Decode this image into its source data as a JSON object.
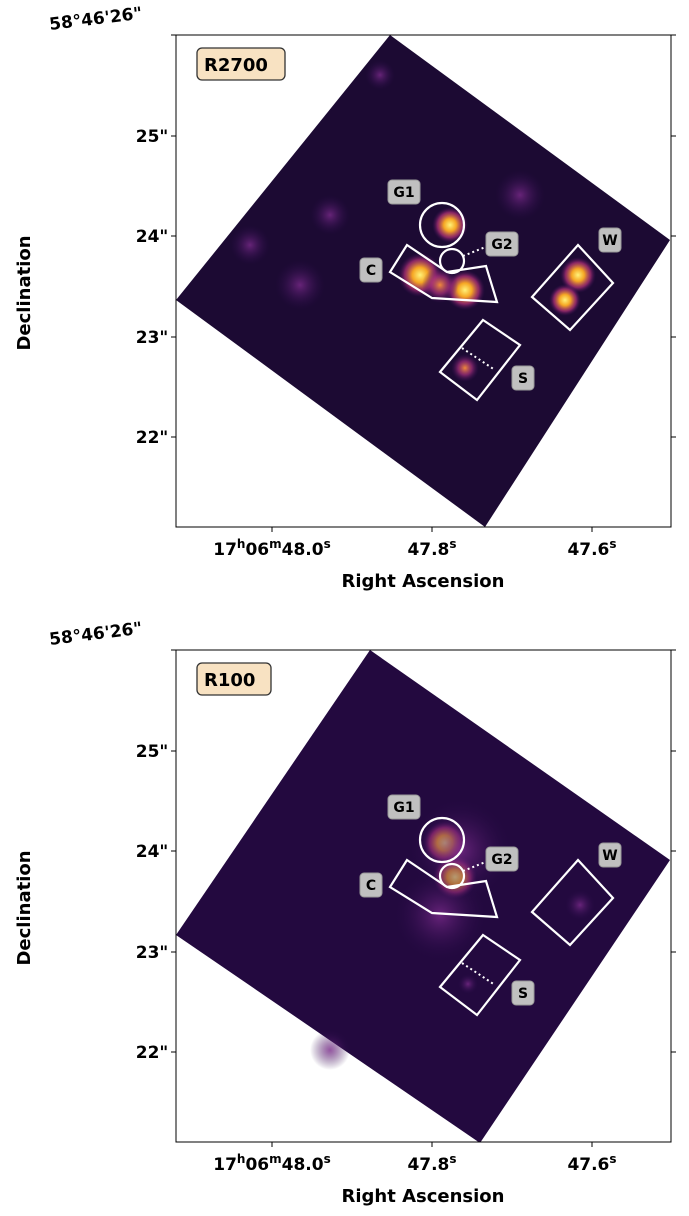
{
  "panels": [
    {
      "label": "R2700",
      "xlabel": "Right Ascension",
      "ylabel": "Declination",
      "yticks": [
        "58°46'26\"",
        "25\"",
        "24\"",
        "23\"",
        "22\""
      ],
      "xticks": [
        [
          "17",
          "h",
          "06",
          "m",
          "48.0",
          "s"
        ],
        [
          "47.8",
          "s"
        ],
        [
          "47.6",
          "s"
        ]
      ],
      "regions": [
        "G1",
        "G2",
        "C",
        "W",
        "S"
      ]
    },
    {
      "label": "R100",
      "xlabel": "Right Ascension",
      "ylabel": "Declination",
      "yticks": [
        "58°46'26\"",
        "25\"",
        "24\"",
        "23\"",
        "22\""
      ],
      "xticks": [
        [
          "17",
          "h",
          "06",
          "m",
          "48.0",
          "s"
        ],
        [
          "47.8",
          "s"
        ],
        [
          "47.6",
          "s"
        ]
      ],
      "regions": [
        "G1",
        "G2",
        "C",
        "W",
        "S"
      ]
    }
  ]
}
